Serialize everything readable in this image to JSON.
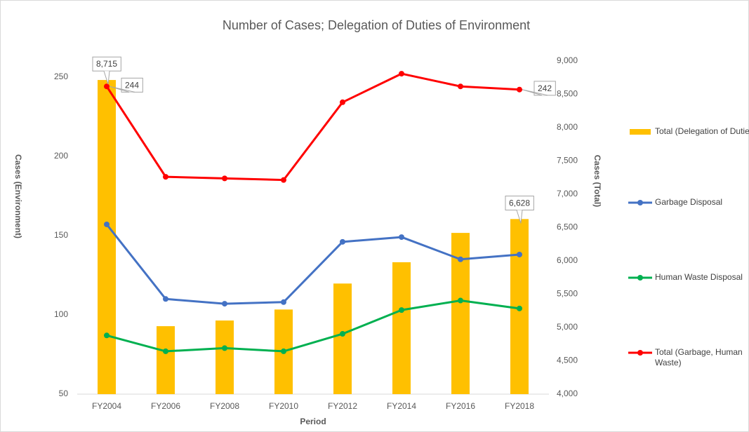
{
  "chart_data": {
    "type": "combo",
    "title": "Number of Cases; Delegation of Duties of Environment",
    "x_label": "Period",
    "y_label": "Cases (Environment)",
    "y2_label": "Cases (Total)",
    "categories": [
      "FY2004",
      "FY2006",
      "FY2008",
      "FY2010",
      "FY2012",
      "FY2014",
      "FY2016",
      "FY2018"
    ],
    "ylim": [
      50,
      260
    ],
    "yticks": [
      50,
      100,
      150,
      200,
      250
    ],
    "y2lim": [
      4000,
      9000
    ],
    "y2ticks": [
      {
        "value": 4000,
        "label": "4,000"
      },
      {
        "value": 4500,
        "label": "4,500"
      },
      {
        "value": 5000,
        "label": "5,000"
      },
      {
        "value": 5500,
        "label": "5,500"
      },
      {
        "value": 6000,
        "label": "6,000"
      },
      {
        "value": 6500,
        "label": "6,500"
      },
      {
        "value": 7000,
        "label": "7,000"
      },
      {
        "value": 7500,
        "label": "7,500"
      },
      {
        "value": 8000,
        "label": "8,000"
      },
      {
        "value": 8500,
        "label": "8,500"
      },
      {
        "value": 9000,
        "label": "9,000"
      }
    ],
    "grid": false,
    "legend": "right",
    "series": [
      {
        "name": "Total (Delegation of Duties)",
        "type": "bar",
        "axis": "y2",
        "color": "#FFC000",
        "values": [
          8715,
          5020,
          5105,
          5270,
          5660,
          5980,
          6420,
          6628
        ],
        "value_labels": [
          "8,715",
          null,
          null,
          null,
          null,
          null,
          null,
          "6,628"
        ]
      },
      {
        "name": "Garbage Disposal",
        "type": "line",
        "color": "#4472C4",
        "values": [
          157,
          110,
          107,
          108,
          146,
          149,
          135,
          138
        ]
      },
      {
        "name": "Human Waste Disposal",
        "type": "line",
        "color": "#00B050",
        "values": [
          87,
          77,
          79,
          77,
          88,
          103,
          109,
          104
        ]
      },
      {
        "name": "Total (Garbage, Human Waste)",
        "type": "line",
        "color": "#FF0000",
        "values": [
          244,
          187,
          186,
          185,
          234,
          252,
          244,
          242
        ],
        "value_labels": [
          "244",
          null,
          null,
          null,
          null,
          null,
          null,
          "242"
        ]
      }
    ]
  }
}
